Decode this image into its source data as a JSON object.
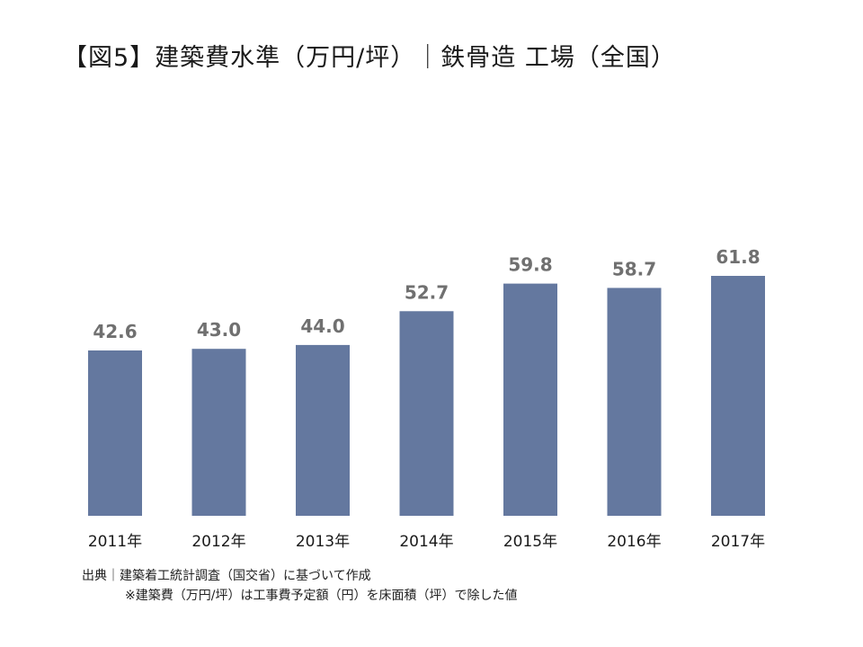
{
  "page": {
    "title": "【図5】建築費水準（万円/坪）｜鉄骨造 工場（全国）",
    "source": "出典｜建築着工統計調査（国交省）に基づいて作成",
    "note": "※建築費（万円/坪）は工事費予定額（円）を床面積（坪）で除した値"
  },
  "chart_data": {
    "type": "bar",
    "title": "【図5】建築費水準（万円/坪）｜鉄骨造 工場（全国）",
    "xlabel": "",
    "ylabel": "",
    "categories": [
      "2011年",
      "2012年",
      "2013年",
      "2014年",
      "2015年",
      "2016年",
      "2017年"
    ],
    "values": [
      42.6,
      43.0,
      44.0,
      52.7,
      59.8,
      58.7,
      61.8
    ],
    "value_labels": [
      "42.6",
      "43.0",
      "44.0",
      "52.7",
      "59.8",
      "58.7",
      "61.8"
    ],
    "ylim": [
      0,
      61.8
    ],
    "grid": false,
    "legend": "none",
    "bar_color": "#64789f",
    "label_color": "#707070"
  }
}
